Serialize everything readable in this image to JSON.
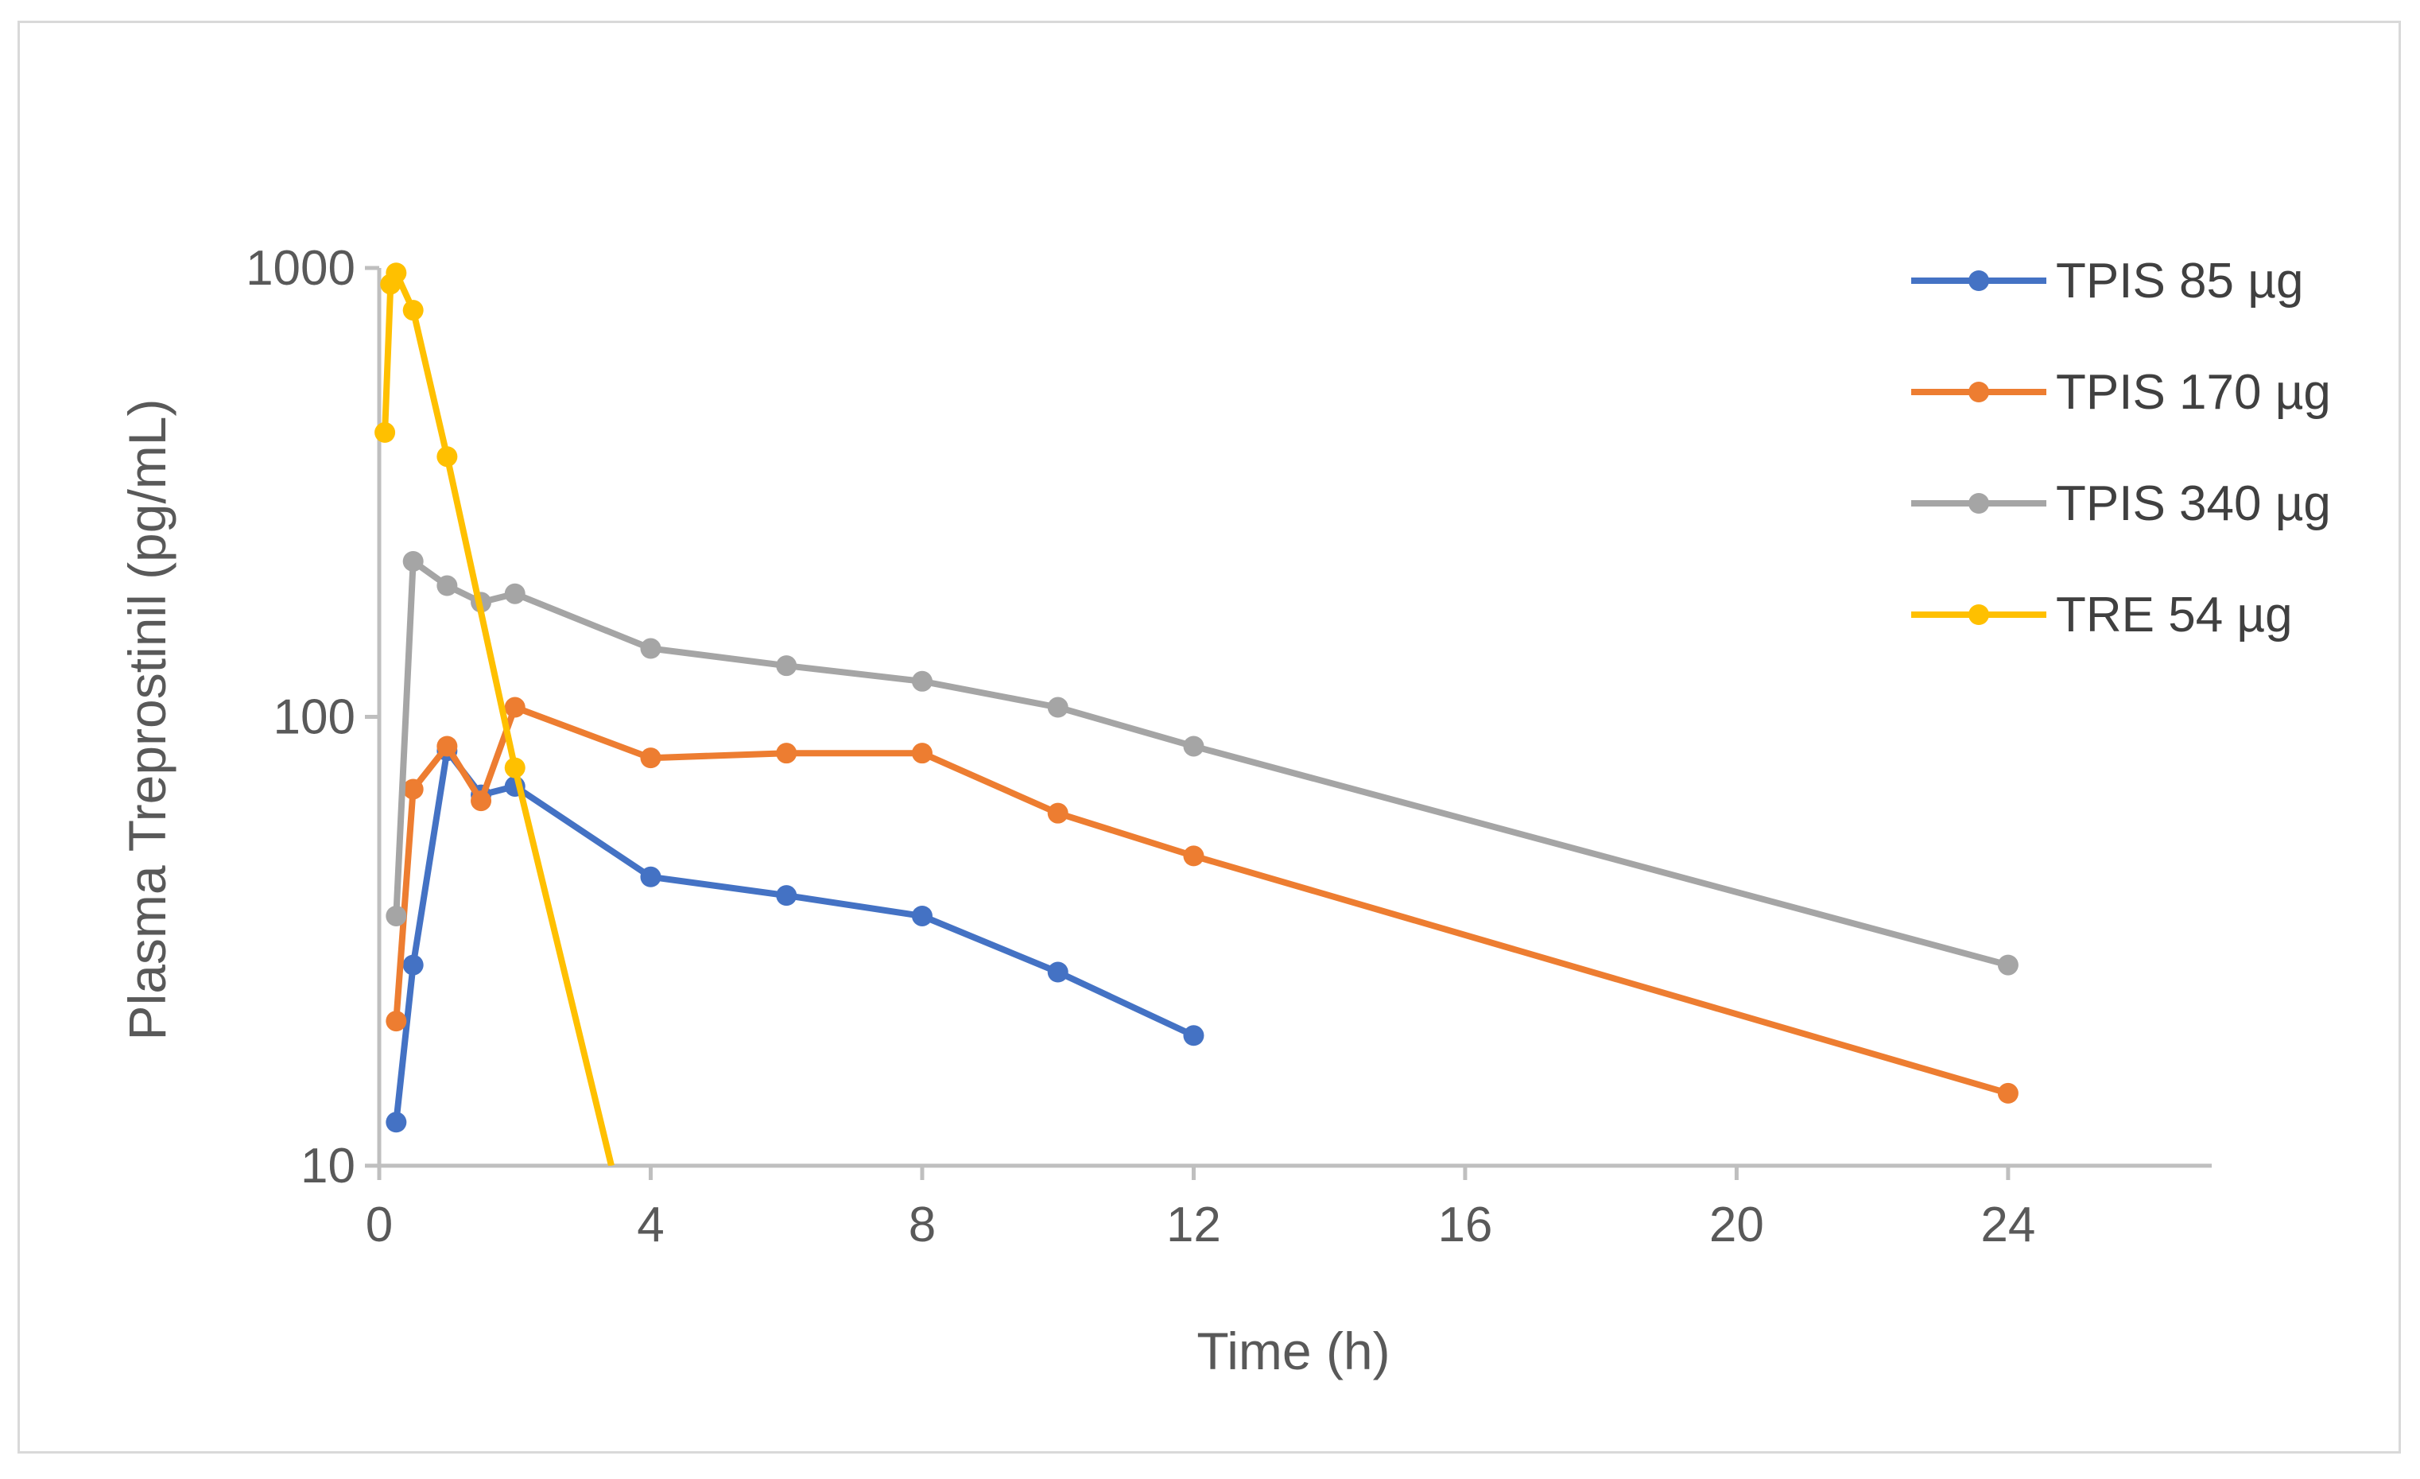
{
  "chart_data": {
    "type": "line",
    "title": "",
    "xlabel": "Time (h)",
    "ylabel": "Plasma Treprostinil (pg/mL)",
    "x_scale": "linear",
    "y_scale": "log",
    "xlim": [
      0,
      27
    ],
    "ylim": [
      10,
      1000
    ],
    "x_ticks": [
      0,
      4,
      8,
      12,
      16,
      20,
      24
    ],
    "x_tick_labels": [
      "0",
      "4",
      "8",
      "12",
      "16",
      "20",
      "24"
    ],
    "y_ticks": [
      10,
      100,
      1000
    ],
    "y_tick_labels": [
      "10",
      "100",
      "1000"
    ],
    "grid": false,
    "legend_position": "right",
    "series": [
      {
        "name": "TPIS 85 µg",
        "color": "#4472c4",
        "points": [
          [
            0.25,
            12.5
          ],
          [
            0.5,
            28
          ],
          [
            1,
            84
          ],
          [
            1.5,
            67
          ],
          [
            2,
            70
          ],
          [
            4,
            44
          ],
          [
            6,
            40
          ],
          [
            8,
            36
          ],
          [
            10,
            27
          ],
          [
            12,
            19.5
          ]
        ]
      },
      {
        "name": "TPIS 170 µg",
        "color": "#ed7d31",
        "points": [
          [
            0.25,
            21
          ],
          [
            0.5,
            69
          ],
          [
            1,
            86
          ],
          [
            1.5,
            65
          ],
          [
            2,
            105
          ],
          [
            4,
            81
          ],
          [
            6,
            83
          ],
          [
            8,
            83
          ],
          [
            10,
            61
          ],
          [
            12,
            49
          ],
          [
            24,
            14.5
          ]
        ]
      },
      {
        "name": "TPIS 340 µg",
        "color": "#a5a5a5",
        "points": [
          [
            0.25,
            36
          ],
          [
            0.5,
            222
          ],
          [
            1,
            196
          ],
          [
            1.5,
            180
          ],
          [
            2,
            188
          ],
          [
            4,
            142
          ],
          [
            6,
            130
          ],
          [
            8,
            120
          ],
          [
            10,
            105
          ],
          [
            12,
            86
          ],
          [
            24,
            28
          ]
        ]
      },
      {
        "name": "TRE 54 µg",
        "color": "#ffc000",
        "points": [
          [
            0.083,
            430
          ],
          [
            0.167,
            920
          ],
          [
            0.25,
            975
          ],
          [
            0.5,
            805
          ],
          [
            1,
            380
          ],
          [
            2,
            77
          ],
          [
            3.42,
            10
          ]
        ]
      }
    ]
  }
}
